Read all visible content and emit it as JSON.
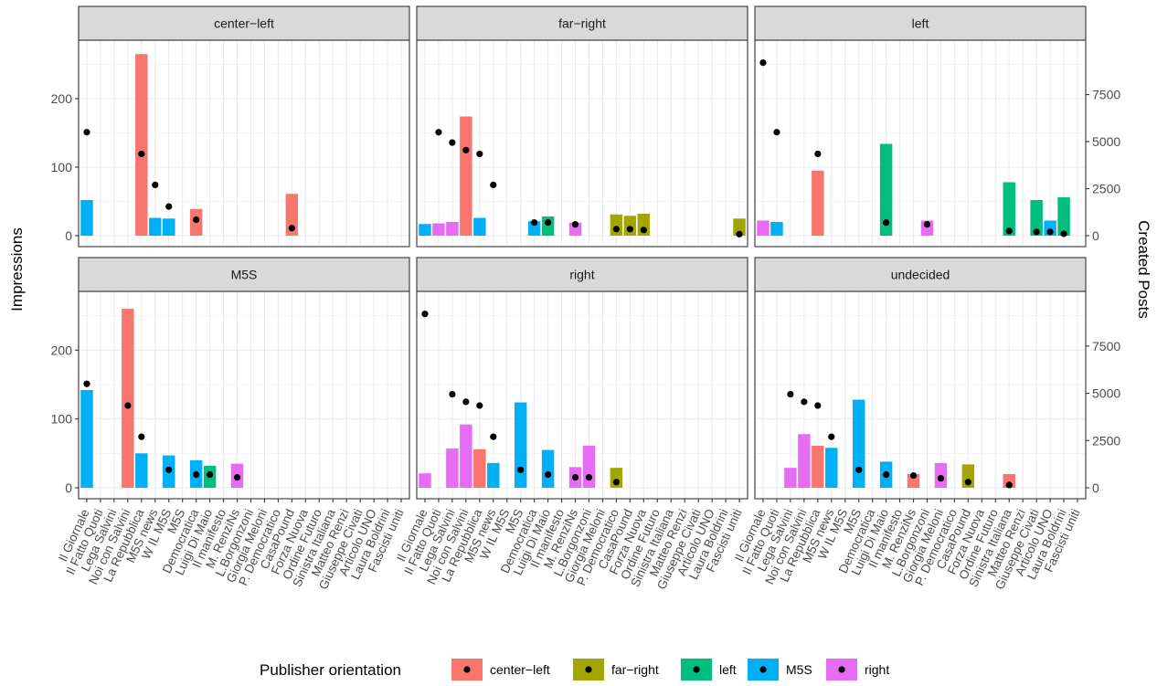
{
  "chart_data": {
    "type": "bar",
    "ylabel_left": "Impressions",
    "ylabel_right": "Created Posts",
    "left_ticks": [
      0,
      100,
      200
    ],
    "right_ticks": [
      0,
      2500,
      5000,
      7500
    ],
    "ylim_left": [
      0,
      280
    ],
    "ylim_right": [
      0,
      10200
    ],
    "categories": [
      "Il Giornale",
      "Il Fatto Quoti",
      "Lega Salvini",
      "Noi con Salvini",
      "La Repubblica",
      "M5S news",
      "W IL M5S",
      "M5S",
      "Democratica",
      "Luigi Di Maio",
      "Il manifesto",
      "M. RenziNs",
      "L.Borgonzoni",
      "Giorgia Meloni",
      "P. Democratico",
      "CasaPound",
      "Forza Nuova",
      "Ordine Futuro",
      "Sinistra Italiana",
      "Matteo Renzi",
      "Giuseppe Civati",
      "Articolo UNO",
      "Laura Boldrini",
      "Fascisti uniti"
    ],
    "legend": {
      "title": "Publisher orientation",
      "position": "bottom",
      "entries": [
        {
          "name": "center−left",
          "color": "#F8766D"
        },
        {
          "name": "far−right",
          "color": "#A3A500"
        },
        {
          "name": "left",
          "color": "#00BF7D"
        },
        {
          "name": "M5S",
          "color": "#00B0F6"
        },
        {
          "name": "right",
          "color": "#E76BF3"
        }
      ]
    },
    "facets": [
      {
        "title": "center−left",
        "bars": [
          {
            "x": "Il Giornale",
            "y": 52,
            "o": "M5S"
          },
          {
            "x": "La Repubblica",
            "y": 265,
            "o": "center-left"
          },
          {
            "x": "M5S news",
            "y": 26,
            "o": "M5S"
          },
          {
            "x": "W IL M5S",
            "y": 25,
            "o": "M5S"
          },
          {
            "x": "Democratica",
            "y": 39,
            "o": "center-left"
          },
          {
            "x": "CasaPound",
            "y": 61,
            "o": "center-left"
          }
        ],
        "points": [
          {
            "x": "Il Giornale",
            "y": 5500
          },
          {
            "x": "La Repubblica",
            "y": 4350
          },
          {
            "x": "M5S news",
            "y": 2700
          },
          {
            "x": "W IL M5S",
            "y": 1550
          },
          {
            "x": "Democratica",
            "y": 850
          },
          {
            "x": "CasaPound",
            "y": 400
          }
        ]
      },
      {
        "title": "far−right",
        "bars": [
          {
            "x": "Il Giornale",
            "y": 17,
            "o": "M5S"
          },
          {
            "x": "Il Fatto Quoti",
            "y": 18,
            "o": "right"
          },
          {
            "x": "Lega Salvini",
            "y": 20,
            "o": "right"
          },
          {
            "x": "Noi con Salvini",
            "y": 174,
            "o": "center-left"
          },
          {
            "x": "La Repubblica",
            "y": 26,
            "o": "M5S"
          },
          {
            "x": "Democratica",
            "y": 21,
            "o": "M5S"
          },
          {
            "x": "Luigi Di Maio",
            "y": 28,
            "o": "left"
          },
          {
            "x": "M. RenziNs",
            "y": 19,
            "o": "right"
          },
          {
            "x": "P. Democratico",
            "y": 31,
            "o": "far-right"
          },
          {
            "x": "CasaPound",
            "y": 29,
            "o": "far-right"
          },
          {
            "x": "Forza Nuova",
            "y": 32,
            "o": "far-right"
          },
          {
            "x": "Fascisti uniti",
            "y": 25,
            "o": "far-right"
          }
        ],
        "points": [
          {
            "x": "Il Fatto Quoti",
            "y": 5500
          },
          {
            "x": "Lega Salvini",
            "y": 4950
          },
          {
            "x": "Noi con Salvini",
            "y": 4550
          },
          {
            "x": "La Repubblica",
            "y": 4350
          },
          {
            "x": "M5S news",
            "y": 2700
          },
          {
            "x": "Democratica",
            "y": 700
          },
          {
            "x": "Luigi Di Maio",
            "y": 700
          },
          {
            "x": "M. RenziNs",
            "y": 600
          },
          {
            "x": "P. Democratico",
            "y": 350
          },
          {
            "x": "CasaPound",
            "y": 350
          },
          {
            "x": "Forza Nuova",
            "y": 300
          },
          {
            "x": "Fascisti uniti",
            "y": 80
          }
        ]
      },
      {
        "title": "left",
        "bars": [
          {
            "x": "Il Giornale",
            "y": 22,
            "o": "right"
          },
          {
            "x": "Il Fatto Quoti",
            "y": 20,
            "o": "M5S"
          },
          {
            "x": "La Repubblica",
            "y": 95,
            "o": "center-left"
          },
          {
            "x": "Luigi Di Maio",
            "y": 134,
            "o": "left"
          },
          {
            "x": "L.Borgonzoni",
            "y": 22,
            "o": "right"
          },
          {
            "x": "Sinistra Italiana",
            "y": 78,
            "o": "left"
          },
          {
            "x": "Giuseppe Civati",
            "y": 52,
            "o": "left"
          },
          {
            "x": "Articolo UNO",
            "y": 22,
            "o": "M5S"
          },
          {
            "x": "Laura Boldrini",
            "y": 56,
            "o": "left"
          }
        ],
        "points": [
          {
            "x": "Il Giornale",
            "y": 9200
          },
          {
            "x": "Il Fatto Quoti",
            "y": 5500
          },
          {
            "x": "La Repubblica",
            "y": 4350
          },
          {
            "x": "Luigi Di Maio",
            "y": 700
          },
          {
            "x": "L.Borgonzoni",
            "y": 600
          },
          {
            "x": "Sinistra Italiana",
            "y": 250
          },
          {
            "x": "Giuseppe Civati",
            "y": 200
          },
          {
            "x": "Articolo UNO",
            "y": 200
          },
          {
            "x": "Laura Boldrini",
            "y": 100
          }
        ]
      },
      {
        "title": "M5S",
        "bars": [
          {
            "x": "Il Giornale",
            "y": 142,
            "o": "M5S"
          },
          {
            "x": "Noi con Salvini",
            "y": 260,
            "o": "center-left"
          },
          {
            "x": "La Repubblica",
            "y": 50,
            "o": "M5S"
          },
          {
            "x": "W IL M5S",
            "y": 47,
            "o": "M5S"
          },
          {
            "x": "Democratica",
            "y": 40,
            "o": "M5S"
          },
          {
            "x": "Luigi Di Maio",
            "y": 32,
            "o": "left"
          },
          {
            "x": "M. RenziNs",
            "y": 35,
            "o": "right"
          }
        ],
        "points": [
          {
            "x": "Il Giornale",
            "y": 5500
          },
          {
            "x": "Noi con Salvini",
            "y": 4350
          },
          {
            "x": "La Repubblica",
            "y": 2700
          },
          {
            "x": "W IL M5S",
            "y": 950
          },
          {
            "x": "Democratica",
            "y": 700
          },
          {
            "x": "Luigi Di Maio",
            "y": 700
          },
          {
            "x": "M. RenziNs",
            "y": 550
          }
        ]
      },
      {
        "title": "right",
        "bars": [
          {
            "x": "Il Giornale",
            "y": 21,
            "o": "right"
          },
          {
            "x": "Lega Salvini",
            "y": 57,
            "o": "right"
          },
          {
            "x": "Noi con Salvini",
            "y": 92,
            "o": "right"
          },
          {
            "x": "La Repubblica",
            "y": 56,
            "o": "center-left"
          },
          {
            "x": "M5S news",
            "y": 36,
            "o": "M5S"
          },
          {
            "x": "M5S",
            "y": 124,
            "o": "M5S"
          },
          {
            "x": "Luigi Di Maio",
            "y": 55,
            "o": "M5S"
          },
          {
            "x": "M. RenziNs",
            "y": 30,
            "o": "right"
          },
          {
            "x": "L.Borgonzoni",
            "y": 61,
            "o": "right"
          },
          {
            "x": "P. Democratico",
            "y": 29,
            "o": "far-right"
          }
        ],
        "points": [
          {
            "x": "Il Giornale",
            "y": 9200
          },
          {
            "x": "Lega Salvini",
            "y": 4950
          },
          {
            "x": "Noi con Salvini",
            "y": 4550
          },
          {
            "x": "La Repubblica",
            "y": 4350
          },
          {
            "x": "M5S news",
            "y": 2700
          },
          {
            "x": "M5S",
            "y": 950
          },
          {
            "x": "Luigi Di Maio",
            "y": 700
          },
          {
            "x": "M. RenziNs",
            "y": 550
          },
          {
            "x": "L.Borgonzoni",
            "y": 550
          },
          {
            "x": "P. Democratico",
            "y": 300
          }
        ]
      },
      {
        "title": "undecided",
        "bars": [
          {
            "x": "Lega Salvini",
            "y": 29,
            "o": "right"
          },
          {
            "x": "Noi con Salvini",
            "y": 78,
            "o": "right"
          },
          {
            "x": "La Repubblica",
            "y": 61,
            "o": "center-left"
          },
          {
            "x": "M5S news",
            "y": 58,
            "o": "M5S"
          },
          {
            "x": "M5S",
            "y": 128,
            "o": "M5S"
          },
          {
            "x": "Luigi Di Maio",
            "y": 38,
            "o": "M5S"
          },
          {
            "x": "M. RenziNs",
            "y": 20,
            "o": "center-left"
          },
          {
            "x": "Giorgia Meloni",
            "y": 36,
            "o": "right"
          },
          {
            "x": "CasaPound",
            "y": 34,
            "o": "far-right"
          },
          {
            "x": "Sinistra Italiana",
            "y": 20,
            "o": "center-left"
          }
        ],
        "points": [
          {
            "x": "Lega Salvini",
            "y": 4950
          },
          {
            "x": "Noi con Salvini",
            "y": 4550
          },
          {
            "x": "La Repubblica",
            "y": 4350
          },
          {
            "x": "M5S news",
            "y": 2700
          },
          {
            "x": "M5S",
            "y": 950
          },
          {
            "x": "Luigi Di Maio",
            "y": 700
          },
          {
            "x": "M. RenziNs",
            "y": 650
          },
          {
            "x": "Giorgia Meloni",
            "y": 500
          },
          {
            "x": "CasaPound",
            "y": 300
          },
          {
            "x": "Sinistra Italiana",
            "y": 150
          }
        ]
      }
    ]
  }
}
